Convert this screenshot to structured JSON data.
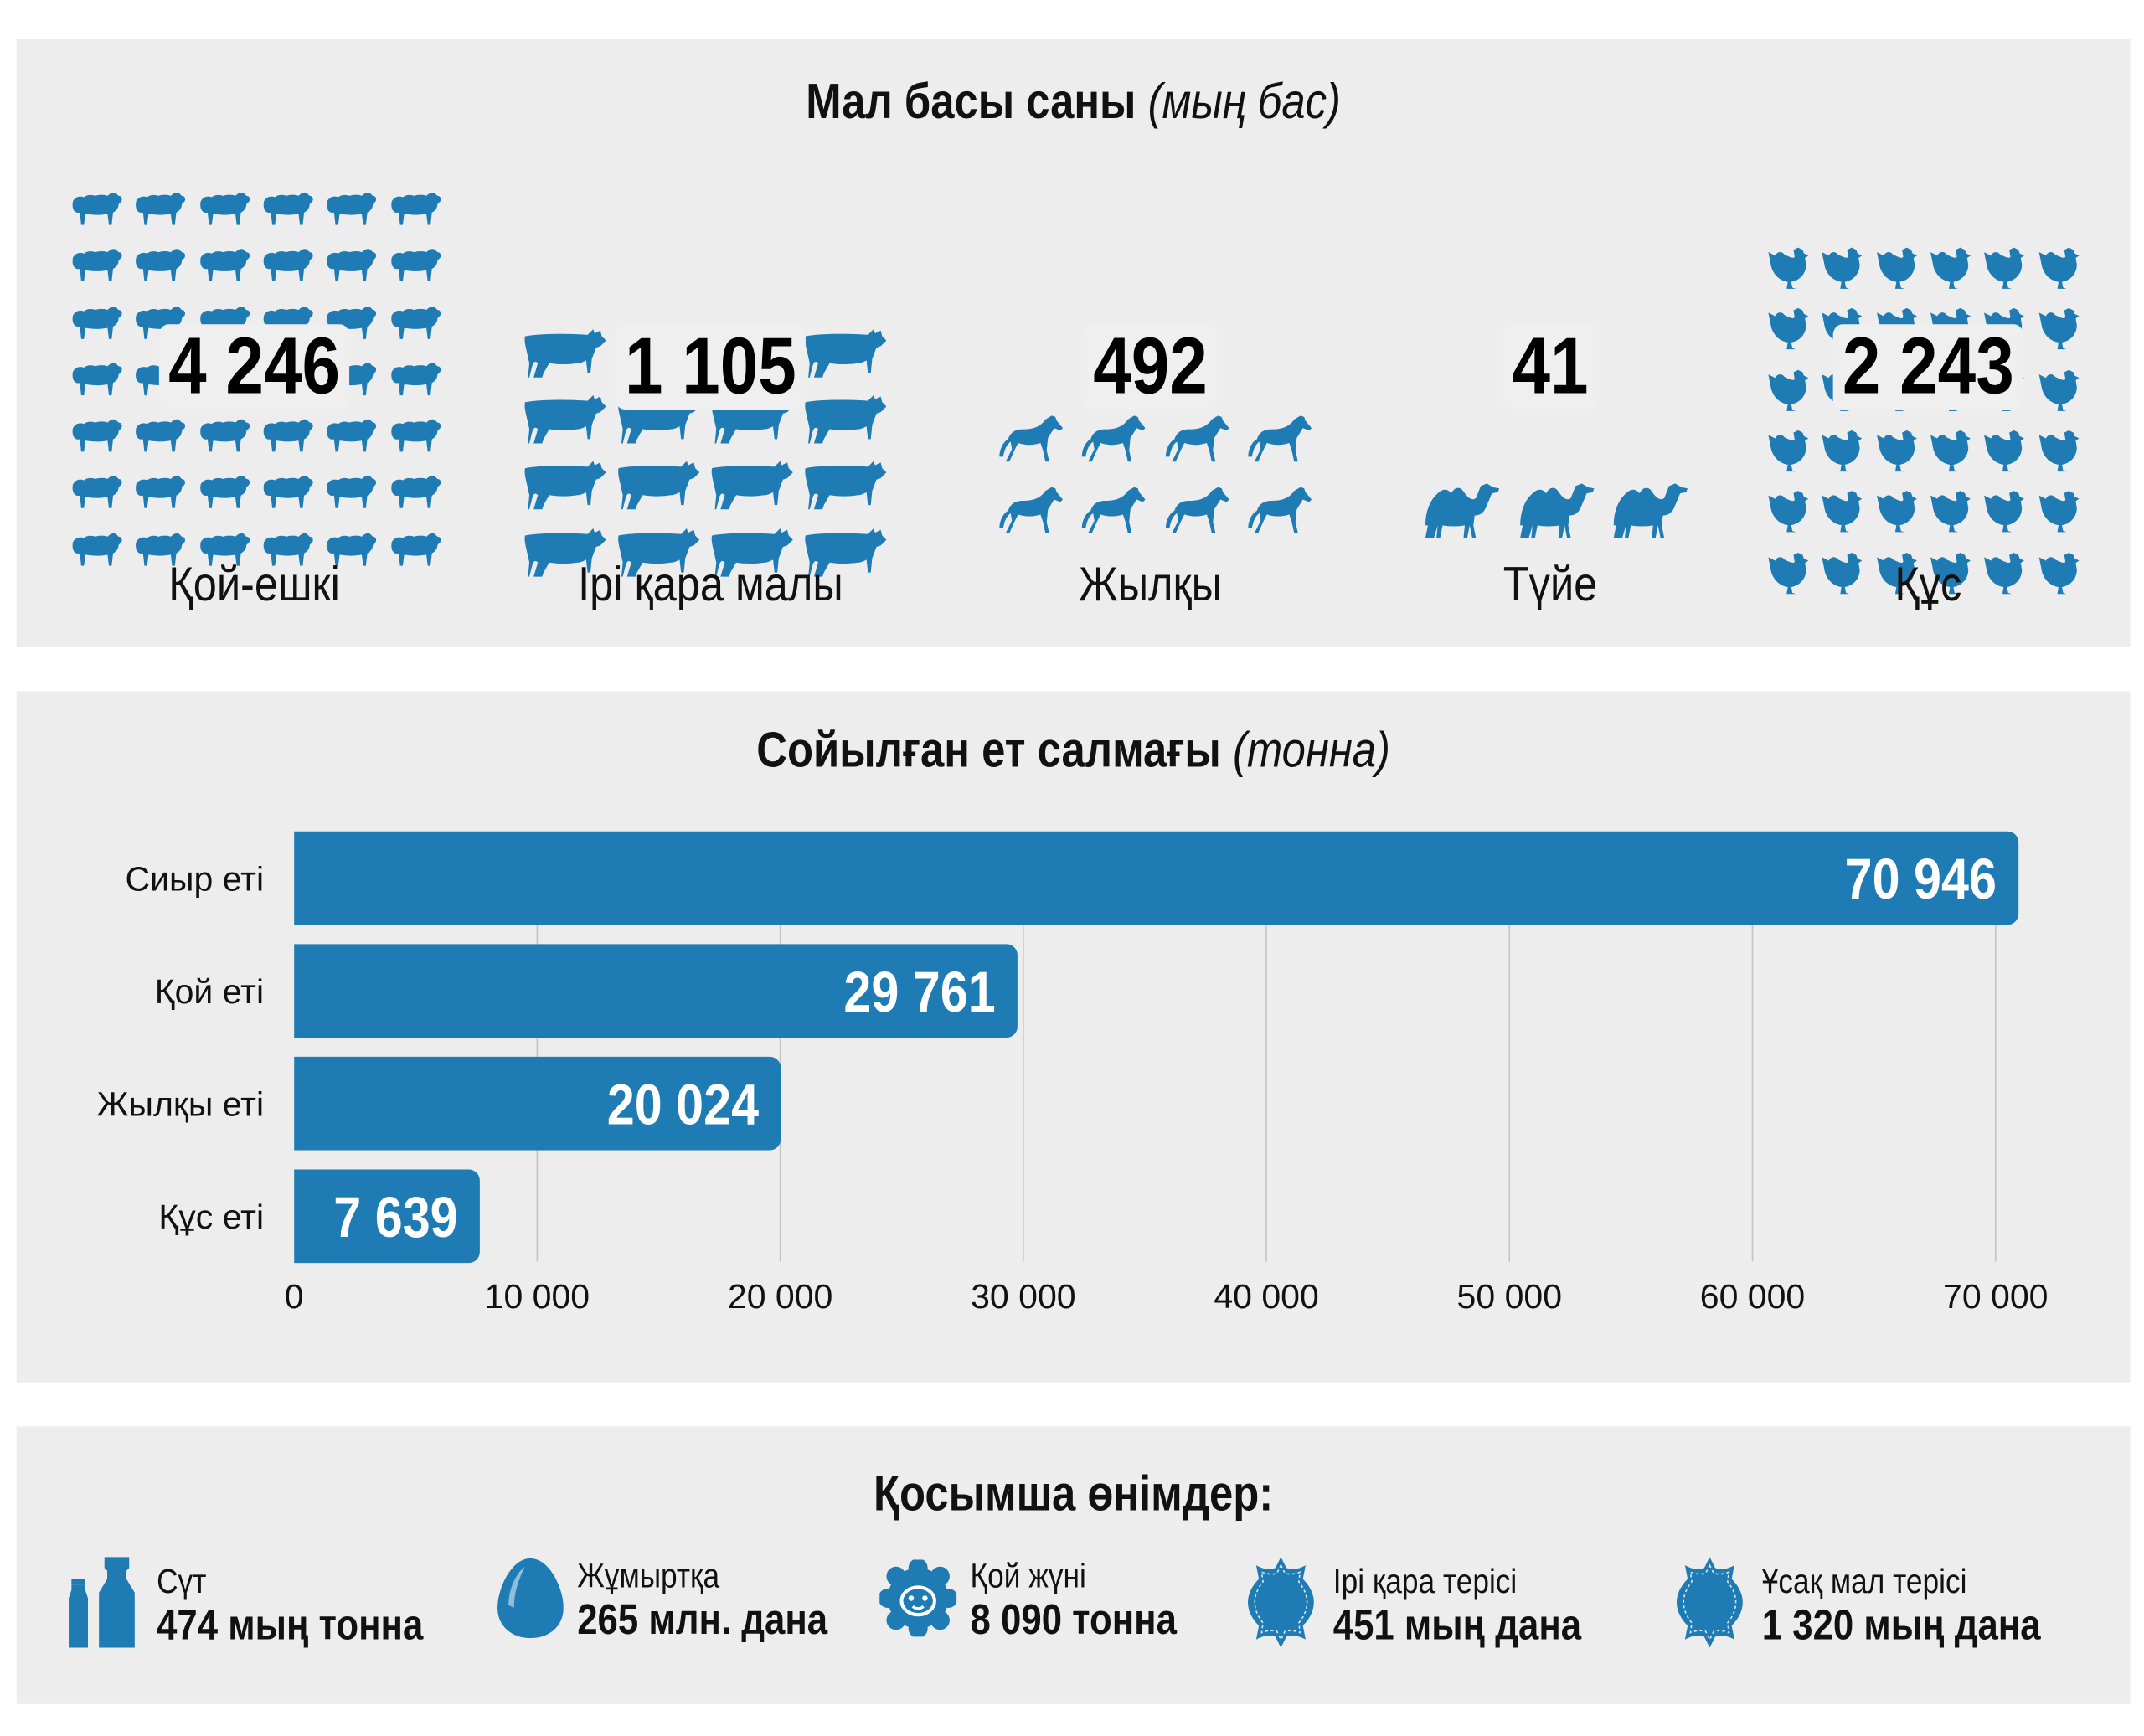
{
  "livestock": {
    "title": "Мал басы саны",
    "title_unit": "(мың бас)",
    "groups": [
      {
        "label": "Қой-ешкі",
        "value": "4 246",
        "icon": "sheep-icon",
        "icon_count": 42
      },
      {
        "label": "Ірі қара малы",
        "value": "1 105",
        "icon": "cow-icon",
        "icon_count": 16
      },
      {
        "label": "Жылқы",
        "value": "492",
        "icon": "horse-icon",
        "icon_count": 8
      },
      {
        "label": "Түйе",
        "value": "41",
        "icon": "camel-icon",
        "icon_count": 3
      },
      {
        "label": "Құс",
        "value": "2 243",
        "icon": "chicken-icon",
        "icon_count": 36
      }
    ]
  },
  "chart_data": {
    "type": "bar",
    "orientation": "horizontal",
    "title": "Сойылған ет салмағы",
    "title_unit": "(тонна)",
    "categories": [
      "Сиыр еті",
      "Қой еті",
      "Жылқы еті",
      "Құс еті"
    ],
    "values": [
      70946,
      29761,
      20024,
      7639
    ],
    "value_labels": [
      "70 946",
      "29 761",
      "20 024",
      "7 639"
    ],
    "xlim": [
      0,
      70000
    ],
    "ticks": [
      0,
      10000,
      20000,
      30000,
      40000,
      50000,
      60000,
      70000
    ],
    "tick_labels": [
      "0",
      "10 000",
      "20 000",
      "30 000",
      "40 000",
      "50 000",
      "60 000",
      "70 000"
    ],
    "grid": true,
    "color": "#1f7bb4"
  },
  "products": {
    "title": "Қосымша өнімдер:",
    "items": [
      {
        "label": "Сүт",
        "value": "474 мың тонна",
        "icon": "milk-bottle-icon"
      },
      {
        "label": "Жұмыртқа",
        "value": "265 млн. дана",
        "icon": "egg-icon"
      },
      {
        "label": "Қой жүні",
        "value": "8 090 тонна",
        "icon": "wool-icon"
      },
      {
        "label": "Ірі қара терісі",
        "value": "451 мың дана",
        "icon": "hide-icon"
      },
      {
        "label": "Ұсақ мал терісі",
        "value": "1 320 мың дана",
        "icon": "hide-icon"
      }
    ]
  }
}
